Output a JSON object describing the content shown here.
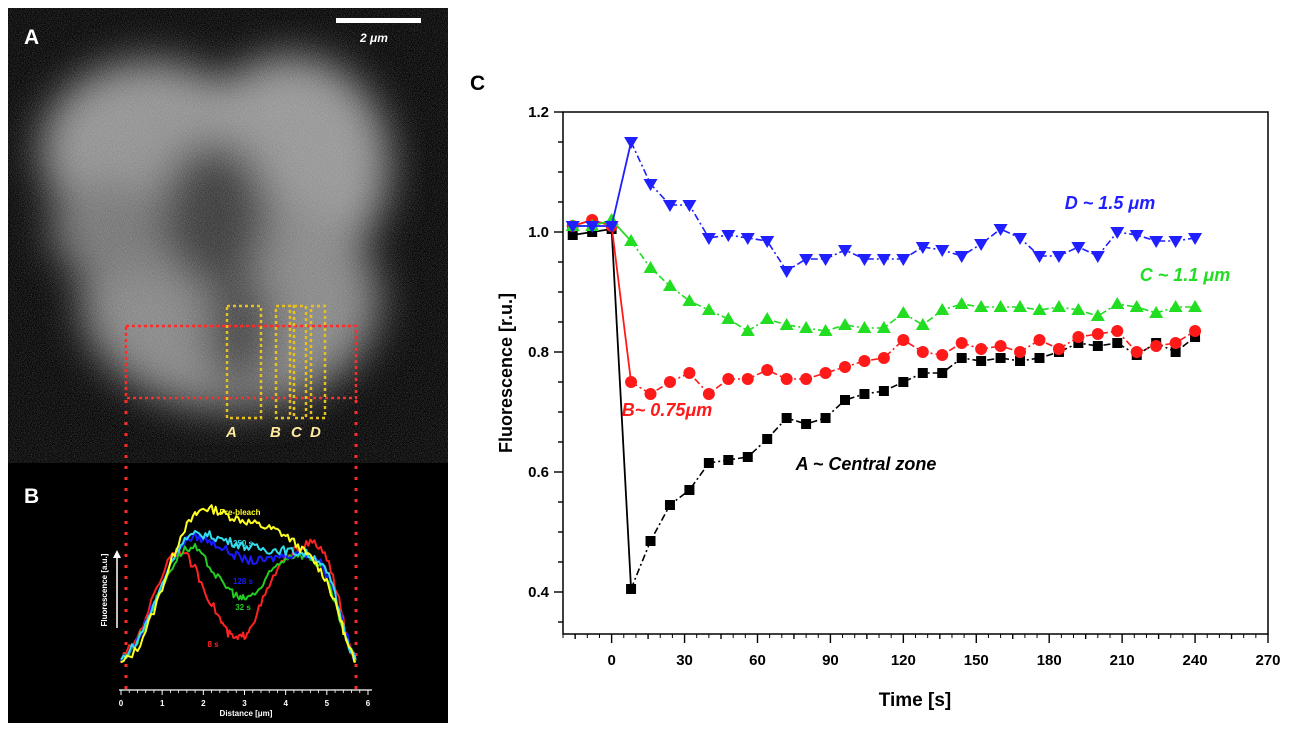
{
  "panels": {
    "a": {
      "label": "A",
      "scale_bar": "2 μm",
      "roi_labels": [
        "A",
        "B",
        "C",
        "D"
      ]
    },
    "b": {
      "label": "B"
    },
    "c": {
      "label": "C"
    }
  },
  "colors": {
    "panel_a_bg": "#000000",
    "roi_red": "#ff2a2a",
    "roi_yellow": "#e6c020",
    "series_D": "#1f1fff",
    "series_C": "#22dd22",
    "series_B": "#ff1a1a",
    "series_A": "#000000"
  },
  "chart_data": [
    {
      "panel": "B",
      "type": "line",
      "xlabel": "Distance [μm]",
      "ylabel": "Fluorescence [a.u.]",
      "xlim": [
        0,
        6
      ],
      "xticks": [
        "0",
        "1",
        "2",
        "3",
        "4",
        "5",
        "6"
      ],
      "series": [
        {
          "name": "Pre-bleach",
          "color": "#ffff22",
          "x": [
            0,
            0.4,
            0.8,
            1.2,
            1.5,
            1.8,
            2.0,
            2.3,
            2.6,
            2.9,
            3.2,
            3.5,
            3.8,
            4.1,
            4.4,
            4.7,
            5.0,
            5.3,
            5.5,
            5.7
          ],
          "y": [
            0.02,
            0.1,
            0.3,
            0.55,
            0.72,
            0.8,
            0.84,
            0.83,
            0.8,
            0.78,
            0.76,
            0.74,
            0.72,
            0.68,
            0.62,
            0.56,
            0.46,
            0.28,
            0.12,
            0.03
          ]
        },
        {
          "name": "250 s",
          "color": "#33ddee",
          "x": [
            0,
            0.4,
            0.8,
            1.2,
            1.5,
            1.8,
            2.1,
            2.4,
            2.7,
            3.0,
            3.3,
            3.6,
            3.9,
            4.2,
            4.5,
            4.8,
            5.1,
            5.4,
            5.6,
            5.7
          ],
          "y": [
            0.04,
            0.14,
            0.33,
            0.55,
            0.67,
            0.7,
            0.7,
            0.68,
            0.66,
            0.64,
            0.63,
            0.62,
            0.62,
            0.61,
            0.6,
            0.57,
            0.46,
            0.22,
            0.08,
            0.04
          ]
        },
        {
          "name": "128 s",
          "color": "#1a1aff",
          "x": [
            0,
            0.4,
            0.8,
            1.2,
            1.5,
            1.8,
            2.1,
            2.4,
            2.7,
            3.0,
            3.3,
            3.6,
            3.9,
            4.2,
            4.5,
            4.8,
            5.1,
            5.4,
            5.6,
            5.7
          ],
          "y": [
            0.04,
            0.14,
            0.34,
            0.55,
            0.66,
            0.69,
            0.67,
            0.64,
            0.6,
            0.57,
            0.56,
            0.57,
            0.59,
            0.6,
            0.6,
            0.57,
            0.46,
            0.24,
            0.08,
            0.04
          ]
        },
        {
          "name": "32 s",
          "color": "#22cc22",
          "x": [
            0,
            0.4,
            0.8,
            1.2,
            1.5,
            1.8,
            2.1,
            2.4,
            2.7,
            2.9,
            3.1,
            3.4,
            3.7,
            4.0,
            4.3,
            4.6,
            4.9,
            5.2,
            5.5,
            5.7
          ],
          "y": [
            0.04,
            0.14,
            0.33,
            0.52,
            0.62,
            0.63,
            0.55,
            0.46,
            0.4,
            0.36,
            0.37,
            0.42,
            0.52,
            0.58,
            0.6,
            0.58,
            0.52,
            0.34,
            0.12,
            0.04
          ]
        },
        {
          "name": "8 s",
          "color": "#ff2222",
          "x": [
            0,
            0.4,
            0.8,
            1.2,
            1.5,
            1.8,
            2.1,
            2.4,
            2.6,
            2.8,
            3.0,
            3.2,
            3.5,
            3.8,
            4.1,
            4.4,
            4.7,
            5.0,
            5.3,
            5.5,
            5.7
          ],
          "y": [
            0.04,
            0.16,
            0.38,
            0.6,
            0.62,
            0.52,
            0.38,
            0.26,
            0.18,
            0.15,
            0.17,
            0.24,
            0.38,
            0.52,
            0.6,
            0.64,
            0.66,
            0.58,
            0.36,
            0.14,
            0.04
          ]
        }
      ]
    },
    {
      "panel": "C",
      "type": "line",
      "xlabel": "Time [s]",
      "ylabel": "Fluorescence [r.u.]",
      "xlim": [
        -20,
        270
      ],
      "ylim": [
        0.33,
        1.2
      ],
      "xticks": [
        0,
        30,
        60,
        90,
        120,
        150,
        180,
        210,
        240,
        270
      ],
      "yticks": [
        "0.4",
        "0.6",
        "0.8",
        "1.0",
        "1.2"
      ],
      "grid": false,
      "series": [
        {
          "name": "D ~ 1.5 μm",
          "marker": "triangle-down",
          "color": "#1f1fff",
          "x": [
            -16,
            -8,
            0,
            8,
            16,
            24,
            32,
            40,
            48,
            56,
            64,
            72,
            80,
            88,
            96,
            104,
            112,
            120,
            128,
            136,
            144,
            152,
            160,
            168,
            176,
            184,
            192,
            200,
            208,
            216,
            224,
            232,
            240
          ],
          "y": [
            1.01,
            1.01,
            1.01,
            1.15,
            1.08,
            1.045,
            1.045,
            0.99,
            0.995,
            0.99,
            0.985,
            0.935,
            0.955,
            0.955,
            0.97,
            0.955,
            0.955,
            0.955,
            0.975,
            0.97,
            0.96,
            0.98,
            1.005,
            0.99,
            0.96,
            0.96,
            0.975,
            0.96,
            1.0,
            0.995,
            0.985,
            0.985,
            0.99
          ]
        },
        {
          "name": "C ~ 1.1 μm",
          "marker": "triangle-up",
          "color": "#22dd22",
          "x": [
            -16,
            -8,
            0,
            8,
            16,
            24,
            32,
            40,
            48,
            56,
            64,
            72,
            80,
            88,
            96,
            104,
            112,
            120,
            128,
            136,
            144,
            152,
            160,
            168,
            176,
            184,
            192,
            200,
            208,
            216,
            224,
            232,
            240
          ],
          "y": [
            1.01,
            1.01,
            1.02,
            0.985,
            0.94,
            0.91,
            0.885,
            0.87,
            0.855,
            0.835,
            0.855,
            0.845,
            0.84,
            0.835,
            0.845,
            0.84,
            0.84,
            0.865,
            0.845,
            0.87,
            0.88,
            0.875,
            0.875,
            0.875,
            0.87,
            0.875,
            0.87,
            0.86,
            0.88,
            0.875,
            0.865,
            0.875,
            0.875
          ]
        },
        {
          "name": "B~ 0.75μm",
          "marker": "circle",
          "color": "#ff1a1a",
          "x": [
            -16,
            -8,
            0,
            8,
            16,
            24,
            32,
            40,
            48,
            56,
            64,
            72,
            80,
            88,
            96,
            104,
            112,
            120,
            128,
            136,
            144,
            152,
            160,
            168,
            176,
            184,
            192,
            200,
            208,
            216,
            224,
            232,
            240
          ],
          "y": [
            1.01,
            1.02,
            1.01,
            0.75,
            0.73,
            0.75,
            0.765,
            0.73,
            0.755,
            0.755,
            0.77,
            0.755,
            0.755,
            0.765,
            0.775,
            0.785,
            0.79,
            0.82,
            0.8,
            0.795,
            0.815,
            0.805,
            0.81,
            0.8,
            0.82,
            0.805,
            0.825,
            0.83,
            0.835,
            0.8,
            0.81,
            0.815,
            0.835
          ]
        },
        {
          "name": "A ~ Central zone",
          "marker": "square",
          "color": "#000000",
          "x": [
            -16,
            -8,
            0,
            8,
            16,
            24,
            32,
            40,
            48,
            56,
            64,
            72,
            80,
            88,
            96,
            104,
            112,
            120,
            128,
            136,
            144,
            152,
            160,
            168,
            176,
            184,
            192,
            200,
            208,
            216,
            224,
            232,
            240
          ],
          "y": [
            0.995,
            1.0,
            1.005,
            0.405,
            0.485,
            0.545,
            0.57,
            0.615,
            0.62,
            0.625,
            0.655,
            0.69,
            0.68,
            0.69,
            0.72,
            0.73,
            0.735,
            0.75,
            0.765,
            0.765,
            0.79,
            0.785,
            0.79,
            0.785,
            0.79,
            0.8,
            0.815,
            0.81,
            0.815,
            0.795,
            0.815,
            0.8,
            0.825
          ]
        }
      ]
    }
  ]
}
